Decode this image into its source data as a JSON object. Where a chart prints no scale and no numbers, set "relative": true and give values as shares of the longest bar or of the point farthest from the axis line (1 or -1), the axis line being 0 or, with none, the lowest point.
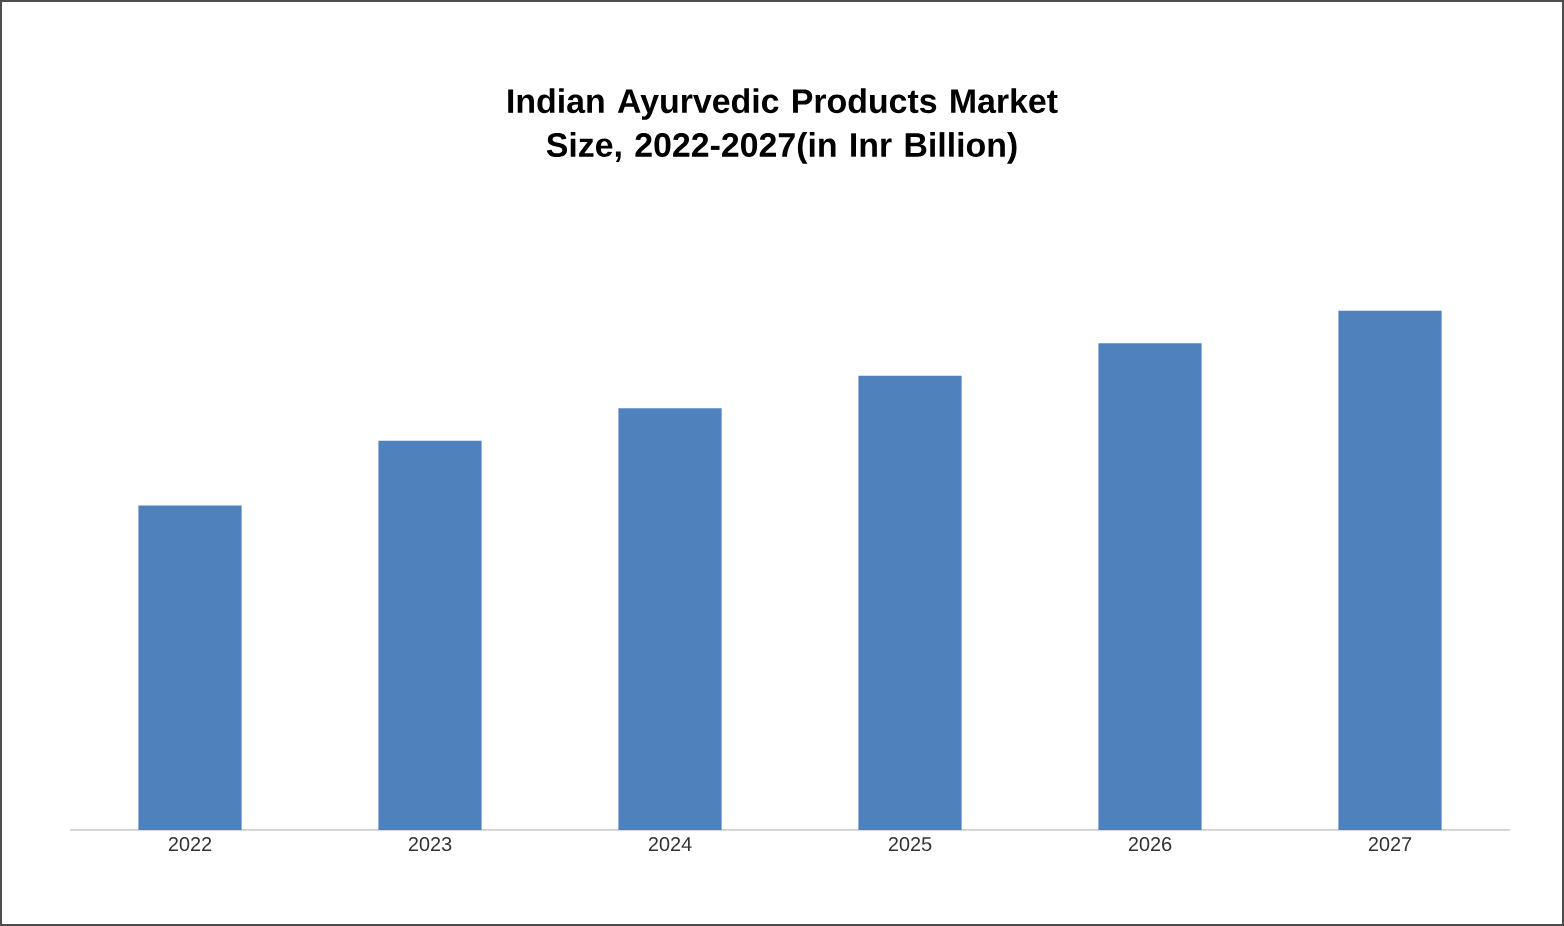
{
  "chart_data": {
    "type": "bar",
    "title": "Indian Ayurvedic Products Market Size, 2022-2027(in Inr Billion)",
    "categories": [
      "2022",
      "2023",
      "2024",
      "2025",
      "2026",
      "2027"
    ],
    "values": [
      0.625,
      0.75,
      0.8125,
      0.875,
      0.9375,
      1
    ],
    "color": "#4f81bd",
    "relative": true
  }
}
